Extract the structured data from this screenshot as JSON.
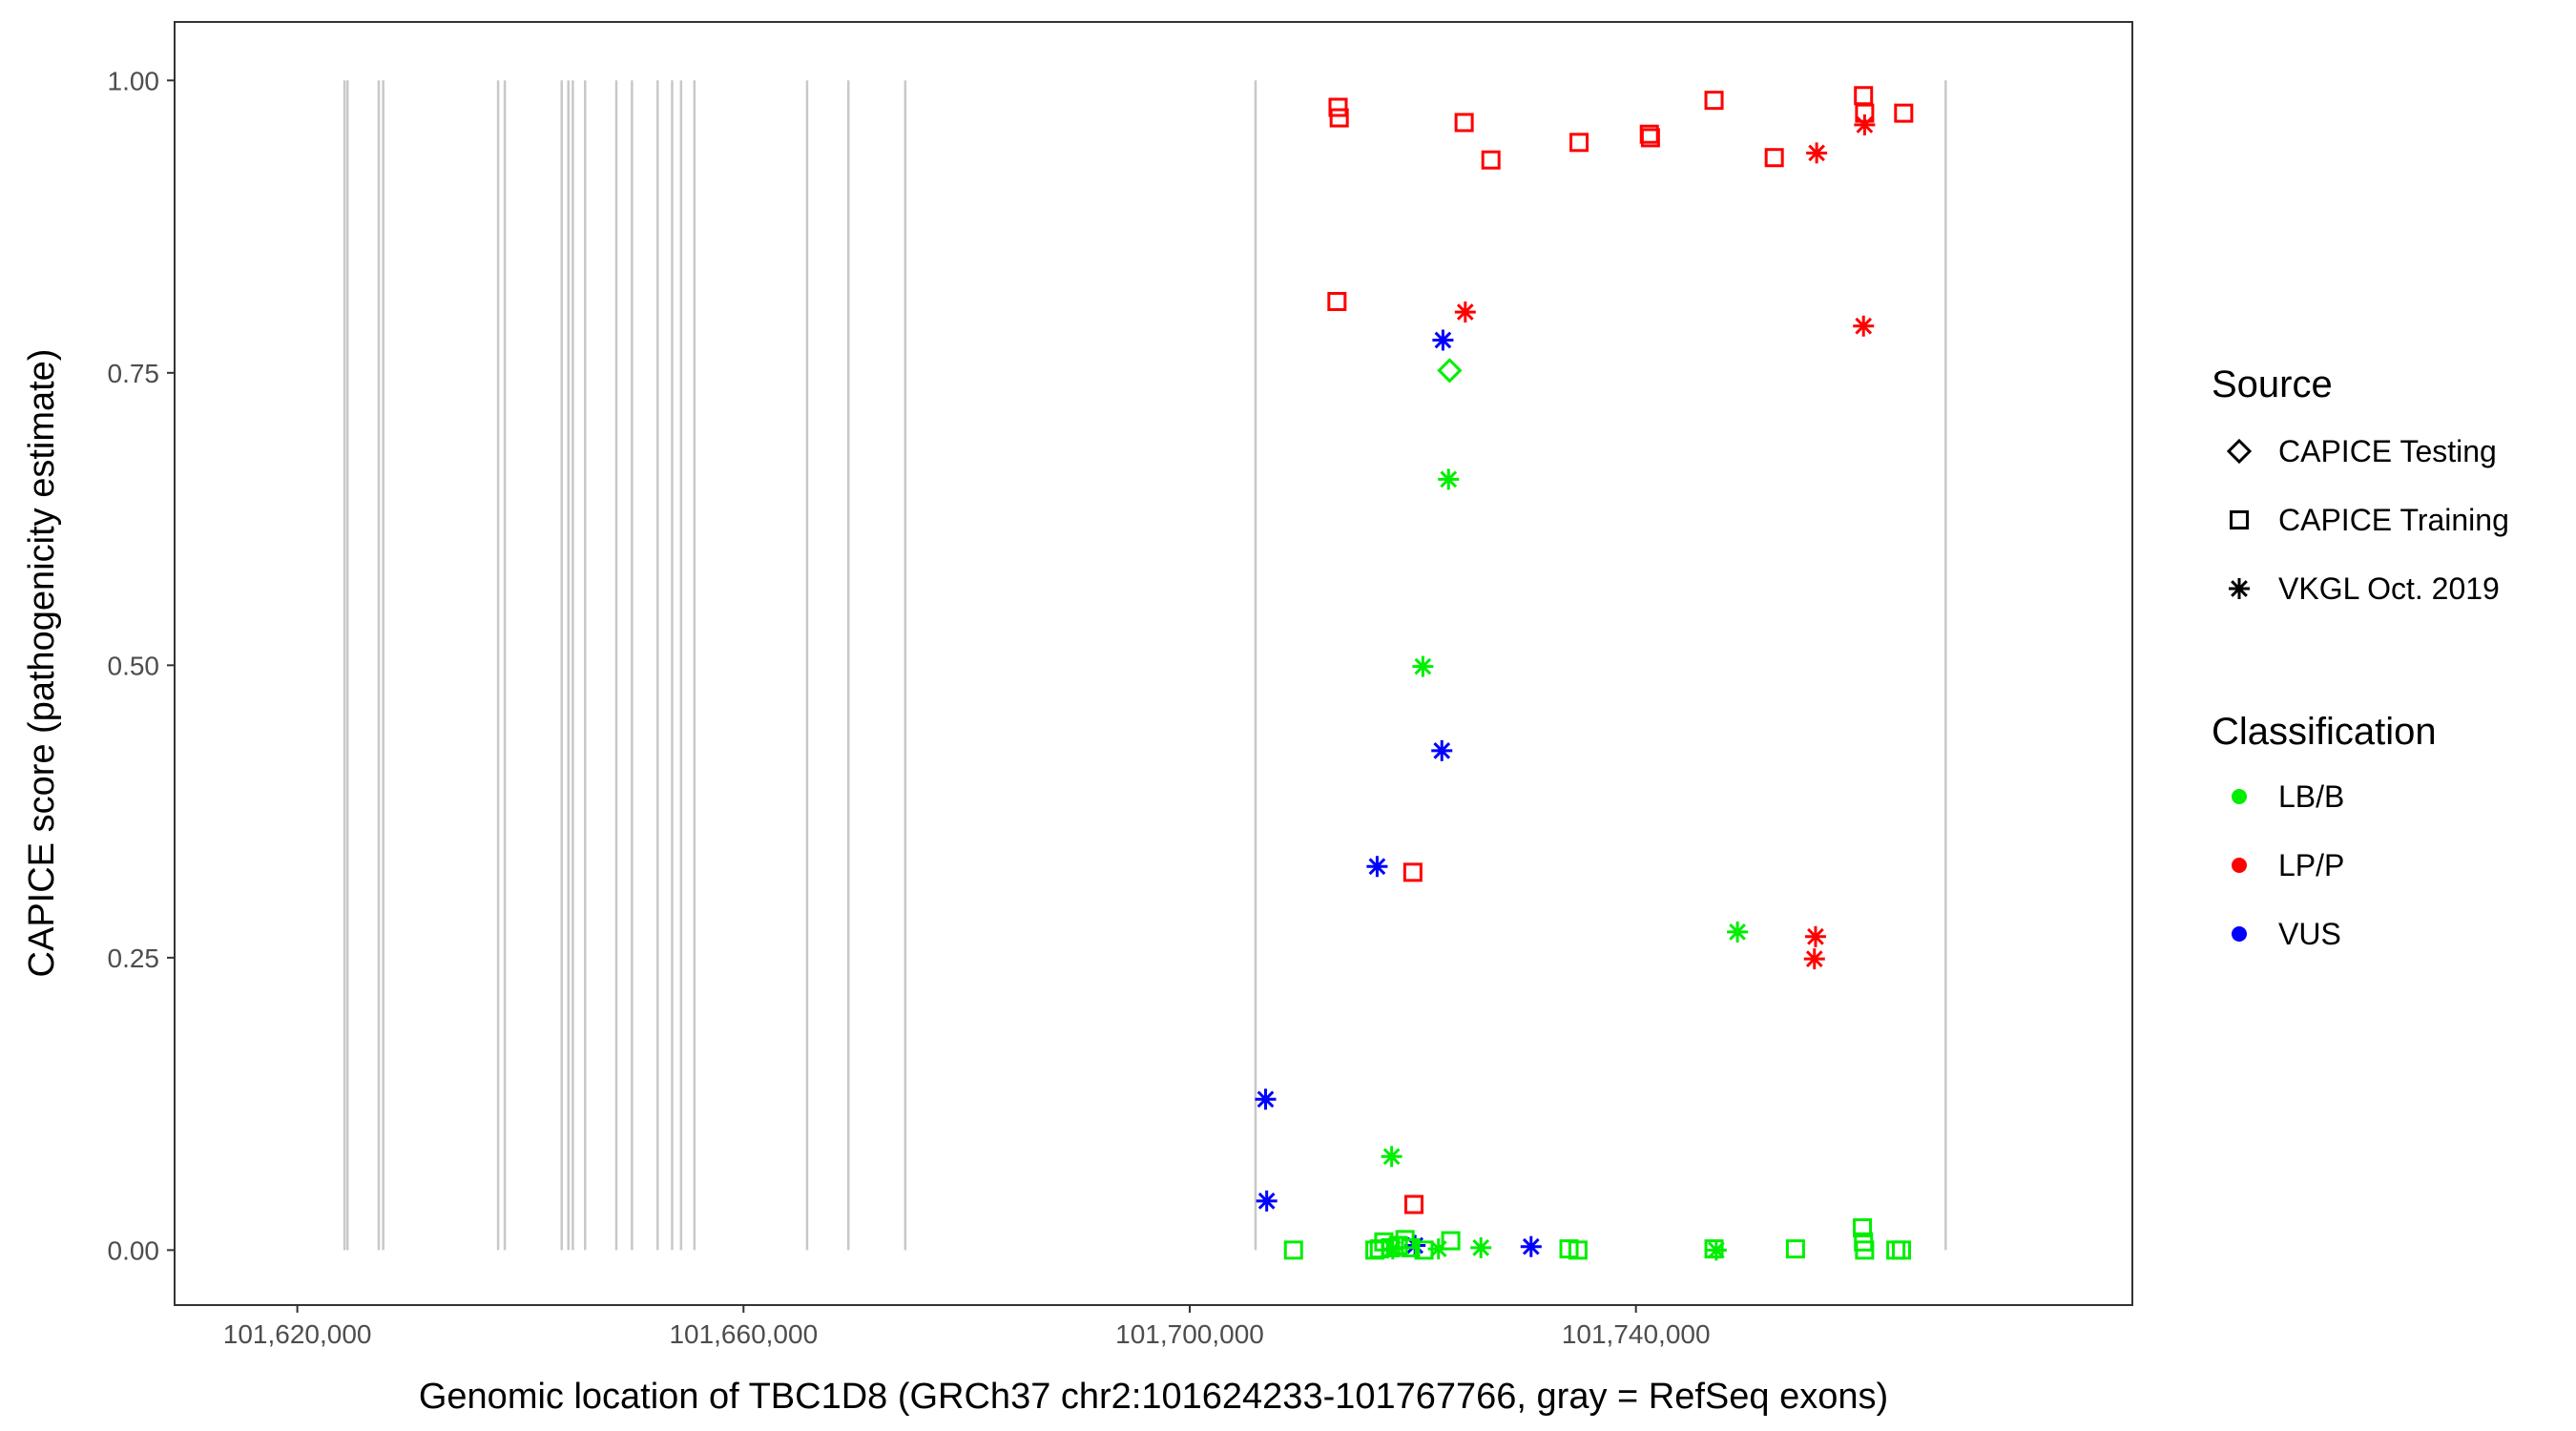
{
  "chart_data": {
    "type": "scatter",
    "title": "",
    "xlabel": "Genomic location of TBC1D8 (GRCh37 chr2:101624233-101767766, gray = RefSeq exons)",
    "ylabel": "CAPICE score (pathogenicity estimate)",
    "xlim": [
      101609000,
      101784500
    ],
    "ylim": [
      -0.047,
      1.05
    ],
    "x_ticks": [
      101620000,
      101660000,
      101700000,
      101740000
    ],
    "x_tick_labels": [
      "101,620,000",
      "101,660,000",
      "101,700,000",
      "101,740,000"
    ],
    "y_ticks": [
      0,
      0.25,
      0.5,
      0.75,
      1
    ],
    "y_tick_labels": [
      "0.00",
      "0.25",
      "0.50",
      "0.75",
      "1.00"
    ],
    "grid": false,
    "legend_position": "right",
    "exon_color": "#c8c8c8",
    "exons": [
      101624233,
      101624500,
      101627300,
      101627700,
      101638000,
      101638600,
      101643700,
      101644300,
      101644700,
      101645800,
      101648600,
      101650000,
      101652300,
      101653600,
      101654400,
      101655600,
      101665700,
      101669400,
      101674500,
      101705900,
      101767766
    ],
    "legend": {
      "source": {
        "title": "Source",
        "items": [
          {
            "label": "CAPICE Testing",
            "shape": "diamond"
          },
          {
            "label": "CAPICE Training",
            "shape": "square"
          },
          {
            "label": "VKGL Oct. 2019",
            "shape": "asterisk"
          }
        ]
      },
      "classification": {
        "title": "Classification",
        "items": [
          {
            "label": "LB/B",
            "color": "#00ee00"
          },
          {
            "label": "LP/P",
            "color": "#ff0000"
          },
          {
            "label": "VUS",
            "color": "#0000ff"
          }
        ]
      }
    },
    "series": [
      {
        "name": "CAPICE Training / LP/P",
        "shape": "square",
        "color": "#ff0000",
        "points": [
          [
            101713300,
            0.977
          ],
          [
            101713400,
            0.968
          ],
          [
            101713200,
            0.811
          ],
          [
            101724600,
            0.964
          ],
          [
            101727000,
            0.932
          ],
          [
            101734900,
            0.947
          ],
          [
            101741200,
            0.954
          ],
          [
            101741300,
            0.951
          ],
          [
            101747000,
            0.983
          ],
          [
            101752400,
            0.934
          ],
          [
            101760400,
            0.987
          ],
          [
            101760500,
            0.972
          ],
          [
            101764000,
            0.972
          ],
          [
            101720000,
            0.323
          ],
          [
            101720100,
            0.039
          ]
        ]
      },
      {
        "name": "VKGL Oct. 2019 / LP/P",
        "shape": "asterisk",
        "color": "#ff0000",
        "points": [
          [
            101756200,
            0.938
          ],
          [
            101760500,
            0.962
          ],
          [
            101724700,
            0.802
          ],
          [
            101760400,
            0.79
          ],
          [
            101756100,
            0.268
          ],
          [
            101756000,
            0.249
          ]
        ]
      },
      {
        "name": "VKGL Oct. 2019 / VUS",
        "shape": "asterisk",
        "color": "#0000ff",
        "points": [
          [
            101722700,
            0.778
          ],
          [
            101722600,
            0.427
          ],
          [
            101716800,
            0.328
          ],
          [
            101706800,
            0.129
          ],
          [
            101706900,
            0.042
          ],
          [
            101720200,
            0.004
          ],
          [
            101730600,
            0.003
          ]
        ]
      },
      {
        "name": "CAPICE Testing / LB/B",
        "shape": "diamond",
        "color": "#00ee00",
        "points": [
          [
            101723300,
            0.752
          ]
        ]
      },
      {
        "name": "VKGL Oct. 2019 / LB/B",
        "shape": "asterisk",
        "color": "#00ee00",
        "points": [
          [
            101723200,
            0.659
          ],
          [
            101720900,
            0.499
          ],
          [
            101749100,
            0.272
          ],
          [
            101718100,
            0.08
          ],
          [
            101718200,
            0.001
          ],
          [
            101722300,
            0.001
          ],
          [
            101726100,
            0.002
          ],
          [
            101747200,
            0.0
          ]
        ]
      },
      {
        "name": "CAPICE Training / LB/B",
        "shape": "square",
        "color": "#00ee00",
        "points": [
          [
            101709300,
            0.0
          ],
          [
            101716600,
            0.0
          ],
          [
            101717000,
            0.001
          ],
          [
            101717400,
            0.007
          ],
          [
            101718000,
            0.002
          ],
          [
            101718700,
            0.004
          ],
          [
            101719300,
            0.009
          ],
          [
            101719800,
            0.002
          ],
          [
            101721000,
            0.0
          ],
          [
            101723400,
            0.008
          ],
          [
            101734000,
            0.001
          ],
          [
            101734800,
            0.0
          ],
          [
            101747000,
            0.001
          ],
          [
            101754300,
            0.001
          ],
          [
            101760300,
            0.019
          ],
          [
            101760400,
            0.007
          ],
          [
            101760500,
            0.0
          ],
          [
            101763300,
            0.0
          ],
          [
            101763800,
            0.0
          ]
        ]
      }
    ]
  }
}
